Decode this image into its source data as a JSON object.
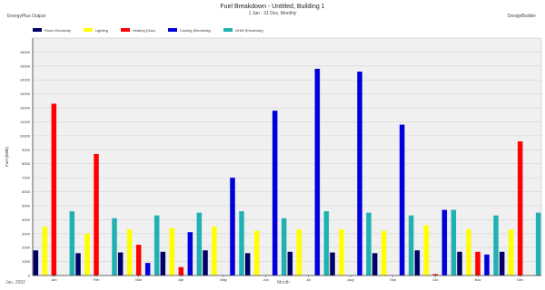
{
  "header": {
    "title": "Fuel Breakdown - Untitled, Building 1",
    "subtitle": "1 Jan - 31 Dec, Monthly",
    "left_label": "EnergyPlus Output",
    "right_label": "DesignBuilder"
  },
  "footer": {
    "left": "Jan, 2002",
    "center": "Month"
  },
  "colors": {
    "plot_bg": "#f0f0f0",
    "grid": "#d4d4d4",
    "axis": "#444444"
  },
  "chart_data": {
    "type": "bar",
    "title": "Fuel Breakdown - Untitled, Building 1",
    "xlabel": "Month",
    "ylabel": "Fuel (kWh)",
    "ylim": [
      0,
      17000
    ],
    "yticks": [
      0,
      1000,
      2000,
      3000,
      4000,
      5000,
      6000,
      7000,
      8000,
      9000,
      10000,
      11000,
      12000,
      13000,
      14000,
      15000,
      16000
    ],
    "grid": true,
    "legend_placement": "top",
    "categories": [
      "Jan",
      "Feb",
      "Mar",
      "Apr",
      "May",
      "Jun",
      "Jul",
      "Aug",
      "Sep",
      "Oct",
      "Nov",
      "Dec"
    ],
    "series": [
      {
        "name": "Room Electricity",
        "color": "#000066",
        "values": [
          1800,
          1600,
          1650,
          1700,
          1800,
          1600,
          1700,
          1650,
          1600,
          1800,
          1700,
          1700
        ]
      },
      {
        "name": "Lighting",
        "color": "#ffff00",
        "values": [
          3500,
          3000,
          3300,
          3400,
          3500,
          3200,
          3300,
          3300,
          3200,
          3600,
          3300,
          3300
        ]
      },
      {
        "name": "Heating (Gas)",
        "color": "#ff0000",
        "values": [
          12300,
          8700,
          2200,
          600,
          0,
          0,
          0,
          0,
          0,
          100,
          1700,
          9600
        ]
      },
      {
        "name": "Cooling (Electricity)",
        "color": "#0000dd",
        "values": [
          0,
          0,
          900,
          3100,
          7000,
          11800,
          14800,
          14600,
          10800,
          4700,
          1500,
          0
        ]
      },
      {
        "name": "DHW (Electricity)",
        "color": "#20b2b2",
        "values": [
          4600,
          4100,
          4300,
          4500,
          4600,
          4100,
          4600,
          4500,
          4300,
          4700,
          4300,
          4500
        ]
      }
    ]
  }
}
